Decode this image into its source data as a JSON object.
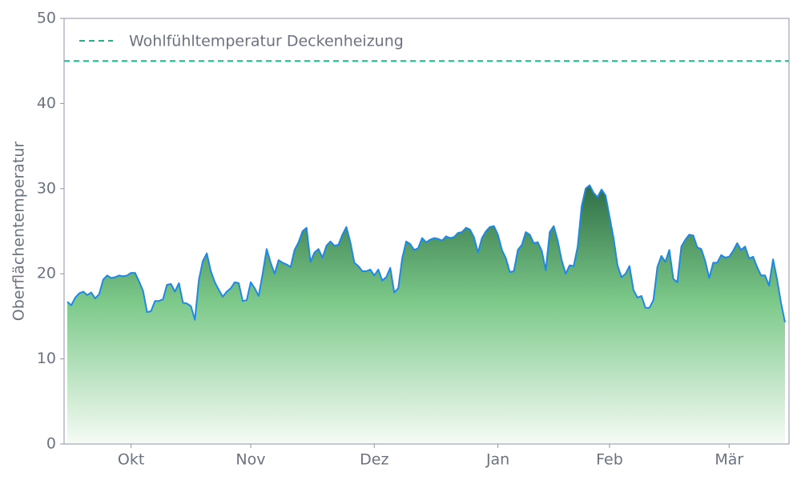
{
  "chart_data": {
    "type": "area",
    "ylabel": "Oberflächentemperatur",
    "ylim": [
      0,
      50
    ],
    "yticks": [
      0,
      10,
      20,
      30,
      40,
      50
    ],
    "categories": [
      null,
      null,
      null,
      null,
      null,
      null,
      null,
      null,
      null,
      null,
      null,
      null,
      null,
      null,
      null,
      null,
      "Okt",
      null,
      null,
      null,
      null,
      null,
      null,
      null,
      null,
      null,
      null,
      null,
      null,
      null,
      null,
      null,
      null,
      null,
      null,
      null,
      null,
      null,
      null,
      null,
      null,
      null,
      null,
      null,
      null,
      null,
      "Nov",
      null,
      null,
      null,
      null,
      null,
      null,
      null,
      null,
      null,
      null,
      null,
      null,
      null,
      null,
      null,
      null,
      null,
      null,
      null,
      null,
      null,
      null,
      null,
      null,
      null,
      null,
      null,
      null,
      null,
      null,
      "Dez",
      null,
      null,
      null,
      null,
      null,
      null,
      null,
      null,
      null,
      null,
      null,
      null,
      null,
      null,
      null,
      null,
      null,
      null,
      null,
      null,
      null,
      null,
      null,
      null,
      null,
      null,
      null,
      null,
      null,
      null,
      "Jan",
      null,
      null,
      null,
      null,
      null,
      null,
      null,
      null,
      null,
      null,
      null,
      null,
      null,
      null,
      null,
      null,
      null,
      null,
      null,
      null,
      null,
      null,
      null,
      null,
      null,
      null,
      null,
      "Feb",
      null,
      null,
      null,
      null,
      null,
      null,
      null,
      null,
      null,
      null,
      null,
      null,
      null,
      null,
      null,
      null,
      null,
      null,
      null,
      null,
      null,
      null,
      null,
      null,
      null,
      null,
      null,
      null,
      null,
      "Mär",
      null,
      null,
      null,
      null,
      null,
      null,
      null,
      null,
      null,
      null,
      null,
      null,
      null,
      null
    ],
    "values": [
      16.7,
      16.3,
      17.2,
      17.7,
      17.9,
      17.5,
      17.8,
      17.1,
      17.6,
      19.3,
      19.8,
      19.5,
      19.6,
      19.8,
      19.7,
      19.8,
      20.1,
      20.1,
      19.1,
      18.0,
      15.5,
      15.6,
      16.8,
      16.8,
      17.0,
      18.7,
      18.8,
      17.9,
      18.9,
      16.6,
      16.5,
      16.2,
      14.6,
      19.3,
      21.5,
      22.4,
      20.3,
      19.0,
      18.1,
      17.3,
      17.9,
      18.3,
      19.0,
      18.9,
      16.8,
      16.9,
      19.0,
      18.3,
      17.4,
      20.0,
      22.9,
      21.3,
      20.0,
      21.6,
      21.3,
      21.1,
      20.8,
      22.8,
      23.7,
      25.0,
      25.4,
      21.4,
      22.5,
      22.9,
      21.9,
      23.3,
      23.8,
      23.3,
      23.4,
      24.6,
      25.5,
      23.7,
      21.3,
      20.9,
      20.3,
      20.3,
      20.5,
      19.8,
      20.5,
      19.2,
      19.6,
      20.7,
      17.8,
      18.3,
      21.8,
      23.8,
      23.5,
      22.8,
      23.0,
      24.2,
      23.7,
      24.0,
      24.2,
      24.1,
      23.9,
      24.4,
      24.2,
      24.3,
      24.8,
      24.9,
      25.4,
      25.2,
      24.3,
      22.5,
      24.2,
      25.0,
      25.5,
      25.6,
      24.6,
      22.8,
      21.8,
      20.2,
      20.3,
      22.8,
      23.4,
      24.9,
      24.6,
      23.6,
      23.7,
      22.7,
      20.4,
      24.9,
      25.6,
      23.9,
      21.6,
      20.0,
      21.0,
      20.9,
      23.2,
      27.9,
      30.0,
      30.4,
      29.5,
      29.0,
      29.9,
      29.2,
      26.7,
      24.2,
      21.0,
      19.6,
      20.0,
      20.9,
      18.1,
      17.2,
      17.4,
      16.0,
      16.0,
      16.9,
      20.8,
      22.1,
      21.4,
      22.8,
      19.4,
      19.0,
      23.2,
      24.0,
      24.6,
      24.5,
      23.1,
      22.9,
      21.5,
      19.5,
      21.3,
      21.3,
      22.2,
      21.9,
      22.0,
      22.7,
      23.6,
      22.8,
      23.2,
      21.8,
      22.0,
      20.8,
      19.8,
      19.8,
      18.6,
      21.7,
      19.4,
      16.6,
      14.3
    ],
    "color": "#1e88e5",
    "reference_line": {
      "name": "Wohlfühltemperatur Deckenheizung",
      "value": 45,
      "color": "#1db68a"
    }
  }
}
